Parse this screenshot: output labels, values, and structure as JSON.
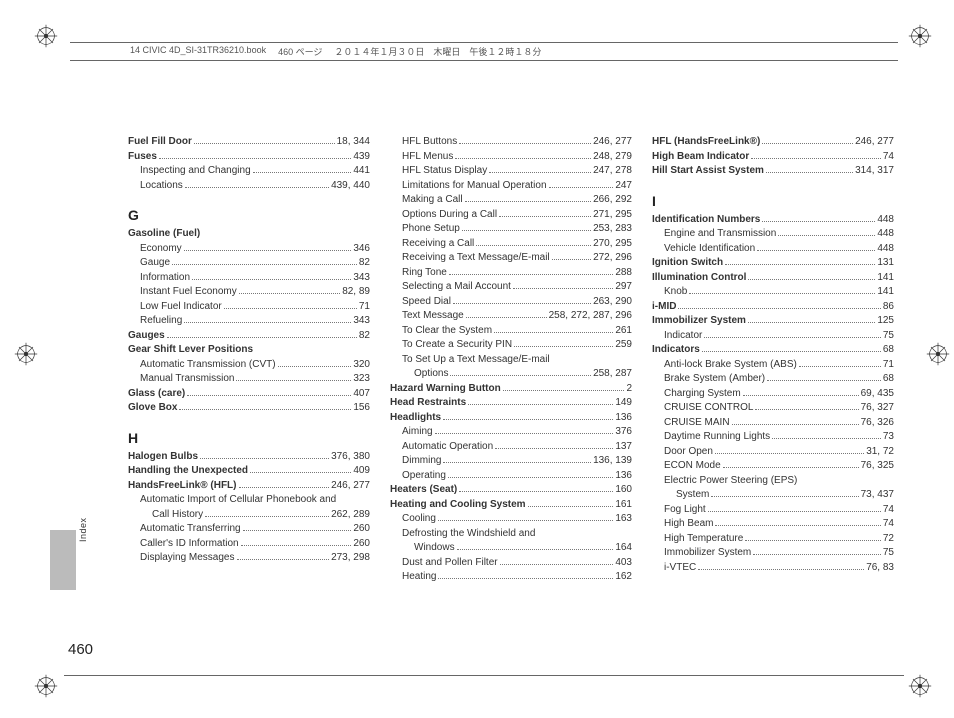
{
  "header": {
    "book": "14 CIVIC 4D_SI-31TR36210.book",
    "page_jp": "460 ページ",
    "date_jp": "２０１４年１月３０日　木曜日　午後１２時１８分"
  },
  "side_label": "Index",
  "page_number": "460",
  "columns": [
    [
      {
        "type": "entry",
        "bold": true,
        "label": "Fuel Fill Door",
        "pages": "18, 344"
      },
      {
        "type": "entry",
        "bold": true,
        "label": "Fuses",
        "pages": "439"
      },
      {
        "type": "sub",
        "label": "Inspecting and Changing",
        "pages": "441"
      },
      {
        "type": "sub",
        "label": "Locations",
        "pages": "439, 440"
      },
      {
        "type": "letter",
        "label": "G"
      },
      {
        "type": "entry",
        "bold": true,
        "label": "Gasoline (Fuel)",
        "pages": ""
      },
      {
        "type": "sub",
        "label": "Economy",
        "pages": "346"
      },
      {
        "type": "sub",
        "label": "Gauge",
        "pages": "82"
      },
      {
        "type": "sub",
        "label": "Information",
        "pages": "343"
      },
      {
        "type": "sub",
        "label": "Instant Fuel Economy",
        "pages": "82, 89"
      },
      {
        "type": "sub",
        "label": "Low Fuel Indicator",
        "pages": "71"
      },
      {
        "type": "sub",
        "label": "Refueling",
        "pages": "343"
      },
      {
        "type": "entry",
        "bold": true,
        "label": "Gauges",
        "pages": "82"
      },
      {
        "type": "entry",
        "bold": true,
        "label": "Gear Shift Lever Positions",
        "pages": ""
      },
      {
        "type": "sub",
        "label": "Automatic Transmission (CVT)",
        "pages": "320"
      },
      {
        "type": "sub",
        "label": "Manual Transmission",
        "pages": "323"
      },
      {
        "type": "entry",
        "bold": true,
        "label": "Glass (care)",
        "pages": "407"
      },
      {
        "type": "entry",
        "bold": true,
        "label": "Glove Box",
        "pages": "156"
      },
      {
        "type": "letter",
        "label": "H"
      },
      {
        "type": "entry",
        "bold": true,
        "label": "Halogen Bulbs",
        "pages": "376, 380"
      },
      {
        "type": "entry",
        "bold": true,
        "label": "Handling the Unexpected",
        "pages": "409"
      },
      {
        "type": "entry",
        "bold": true,
        "label": "HandsFreeLink® (HFL)",
        "pages": "246, 277"
      },
      {
        "type": "sub",
        "label": "Automatic Import of Cellular Phonebook and",
        "pages": ""
      },
      {
        "type": "sub2",
        "label": "Call History",
        "pages": "262, 289"
      },
      {
        "type": "sub",
        "label": "Automatic Transferring",
        "pages": "260"
      },
      {
        "type": "sub",
        "label": "Caller's ID Information",
        "pages": "260"
      },
      {
        "type": "sub",
        "label": "Displaying Messages",
        "pages": "273, 298"
      }
    ],
    [
      {
        "type": "sub",
        "label": "HFL Buttons",
        "pages": "246, 277"
      },
      {
        "type": "sub",
        "label": "HFL Menus",
        "pages": "248, 279"
      },
      {
        "type": "sub",
        "label": "HFL Status Display",
        "pages": "247, 278"
      },
      {
        "type": "sub",
        "label": "Limitations for Manual Operation",
        "pages": "247"
      },
      {
        "type": "sub",
        "label": "Making a Call",
        "pages": "266, 292"
      },
      {
        "type": "sub",
        "label": "Options During a Call",
        "pages": "271, 295"
      },
      {
        "type": "sub",
        "label": "Phone Setup",
        "pages": "253, 283"
      },
      {
        "type": "sub",
        "label": "Receiving a Call",
        "pages": "270, 295"
      },
      {
        "type": "sub",
        "label": "Receiving a Text Message/E-mail",
        "pages": "272, 296"
      },
      {
        "type": "sub",
        "label": "Ring Tone",
        "pages": "288"
      },
      {
        "type": "sub",
        "label": "Selecting a Mail Account",
        "pages": "297"
      },
      {
        "type": "sub",
        "label": "Speed Dial",
        "pages": "263, 290"
      },
      {
        "type": "sub",
        "label": "Text Message",
        "pages": "258, 272, 287, 296"
      },
      {
        "type": "sub",
        "label": "To Clear the System",
        "pages": "261"
      },
      {
        "type": "sub",
        "label": "To Create a Security PIN",
        "pages": "259"
      },
      {
        "type": "sub",
        "label": "To Set Up a Text Message/E-mail",
        "pages": ""
      },
      {
        "type": "sub2",
        "label": "Options",
        "pages": "258, 287"
      },
      {
        "type": "entry",
        "bold": true,
        "label": "Hazard Warning Button",
        "pages": "2"
      },
      {
        "type": "entry",
        "bold": true,
        "label": "Head Restraints",
        "pages": "149"
      },
      {
        "type": "entry",
        "bold": true,
        "label": "Headlights",
        "pages": "136"
      },
      {
        "type": "sub",
        "label": "Aiming",
        "pages": "376"
      },
      {
        "type": "sub",
        "label": "Automatic Operation",
        "pages": "137"
      },
      {
        "type": "sub",
        "label": "Dimming",
        "pages": "136, 139"
      },
      {
        "type": "sub",
        "label": "Operating",
        "pages": "136"
      },
      {
        "type": "entry",
        "bold": true,
        "label": "Heaters (Seat)",
        "pages": "160"
      },
      {
        "type": "entry",
        "bold": true,
        "label": "Heating and Cooling System",
        "pages": "161"
      },
      {
        "type": "sub",
        "label": "Cooling",
        "pages": "163"
      },
      {
        "type": "sub",
        "label": "Defrosting the Windshield and",
        "pages": ""
      },
      {
        "type": "sub2",
        "label": "Windows",
        "pages": "164"
      },
      {
        "type": "sub",
        "label": "Dust and Pollen Filter",
        "pages": "403"
      },
      {
        "type": "sub",
        "label": "Heating",
        "pages": "162"
      }
    ],
    [
      {
        "type": "entry",
        "bold": true,
        "label": "HFL (HandsFreeLink®)",
        "pages": "246, 277"
      },
      {
        "type": "entry",
        "bold": true,
        "label": "High Beam Indicator",
        "pages": "74"
      },
      {
        "type": "entry",
        "bold": true,
        "label": "Hill Start Assist System",
        "pages": "314, 317"
      },
      {
        "type": "letter",
        "label": "I"
      },
      {
        "type": "entry",
        "bold": true,
        "label": "Identification Numbers",
        "pages": "448"
      },
      {
        "type": "sub",
        "label": "Engine and Transmission",
        "pages": "448"
      },
      {
        "type": "sub",
        "label": "Vehicle Identification",
        "pages": "448"
      },
      {
        "type": "entry",
        "bold": true,
        "label": "Ignition Switch",
        "pages": "131"
      },
      {
        "type": "entry",
        "bold": true,
        "label": "Illumination Control",
        "pages": "141"
      },
      {
        "type": "sub",
        "label": "Knob",
        "pages": "141"
      },
      {
        "type": "entry",
        "bold": true,
        "label": "i-MID",
        "pages": "86"
      },
      {
        "type": "entry",
        "bold": true,
        "label": "Immobilizer System",
        "pages": "125"
      },
      {
        "type": "sub",
        "label": "Indicator",
        "pages": "75"
      },
      {
        "type": "entry",
        "bold": true,
        "label": "Indicators",
        "pages": "68"
      },
      {
        "type": "sub",
        "label": "Anti-lock Brake System (ABS)",
        "pages": "71"
      },
      {
        "type": "sub",
        "label": "Brake System (Amber)",
        "pages": "68"
      },
      {
        "type": "sub",
        "label": "Charging System",
        "pages": "69, 435"
      },
      {
        "type": "sub",
        "label": "CRUISE CONTROL",
        "pages": "76, 327"
      },
      {
        "type": "sub",
        "label": "CRUISE MAIN",
        "pages": "76, 326"
      },
      {
        "type": "sub",
        "label": "Daytime Running Lights",
        "pages": "73"
      },
      {
        "type": "sub",
        "label": "Door Open",
        "pages": "31, 72"
      },
      {
        "type": "sub",
        "label": "ECON Mode",
        "pages": "76, 325"
      },
      {
        "type": "sub",
        "label": "Electric Power Steering (EPS)",
        "pages": ""
      },
      {
        "type": "sub2",
        "label": "System",
        "pages": "73, 437"
      },
      {
        "type": "sub",
        "label": "Fog Light",
        "pages": "74"
      },
      {
        "type": "sub",
        "label": "High Beam",
        "pages": "74"
      },
      {
        "type": "sub",
        "label": "High Temperature",
        "pages": "72"
      },
      {
        "type": "sub",
        "label": "Immobilizer System",
        "pages": "75"
      },
      {
        "type": "sub",
        "label": "i-VTEC",
        "pages": "76, 83"
      }
    ]
  ],
  "colors": {
    "text": "#333333",
    "dots": "#777777",
    "tab_bg": "#bbbbbb",
    "rule": "#666666"
  }
}
